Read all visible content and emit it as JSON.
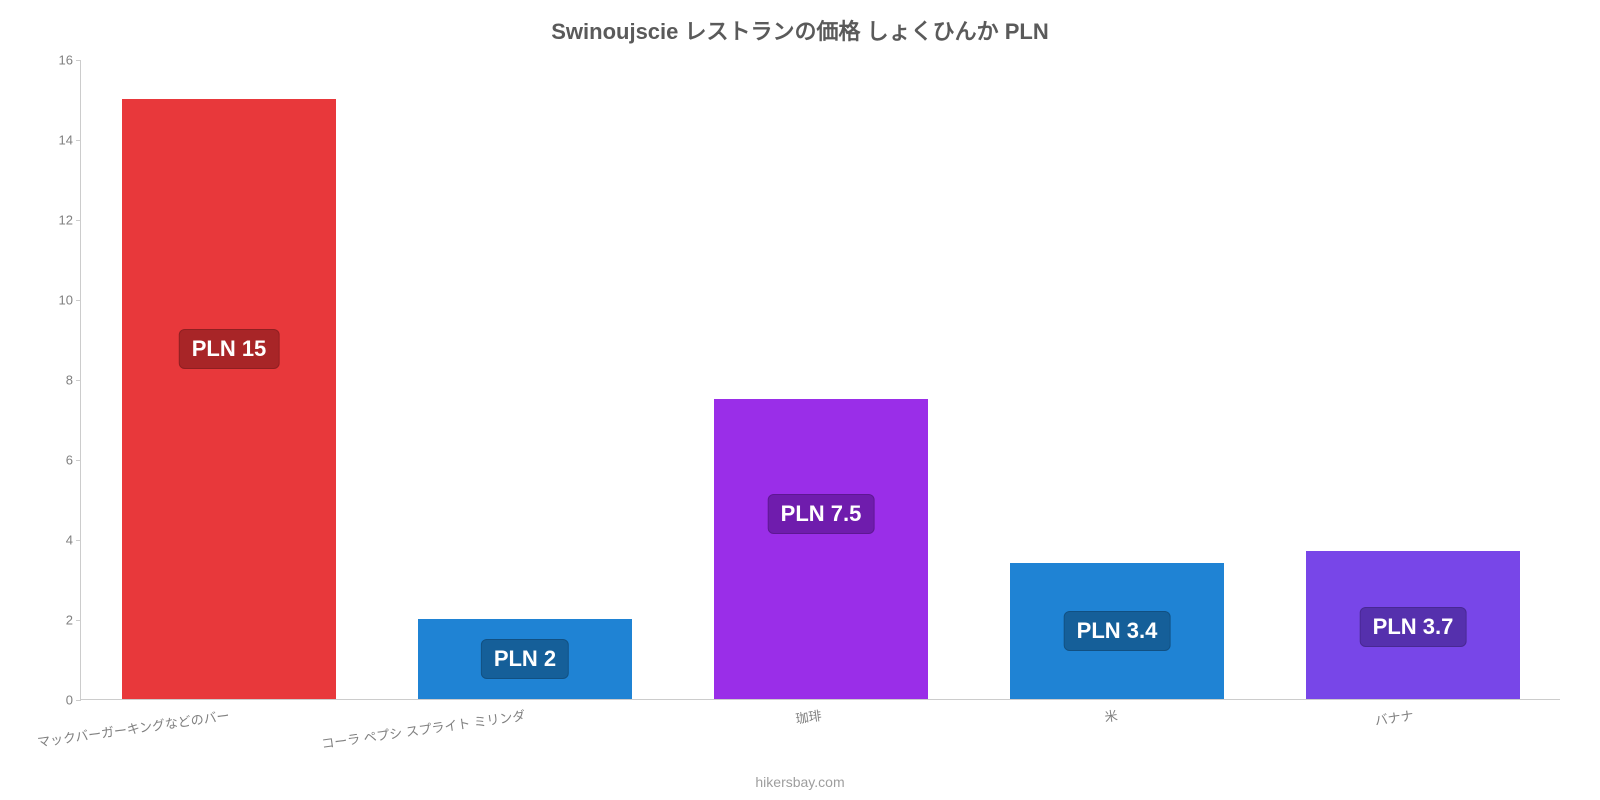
{
  "chart": {
    "type": "bar",
    "title": "Swinoujscie レストランの価格 しょくひんか PLN",
    "title_fontsize": 22,
    "title_color": "#5a5a5a",
    "credit": "hikersbay.com",
    "credit_color": "#9e9e9e",
    "background_color": "#ffffff",
    "axis_color": "#cccccc",
    "tick_color": "#808080",
    "tick_fontsize": 13,
    "label_fontsize": 22,
    "ylim": [
      0,
      16
    ],
    "ytick_step": 2,
    "categories": [
      "マックバーガーキングなどのバー",
      "コーラ ペプシ スプライト ミリンダ",
      "珈琲",
      "米",
      "バナナ"
    ],
    "values": [
      15,
      2,
      7.5,
      3.4,
      3.7
    ],
    "value_labels": [
      "PLN 15",
      "PLN 2",
      "PLN 7.5",
      "PLN 3.4",
      "PLN 3.7"
    ],
    "bar_colors": [
      "#e8383b",
      "#1f83d4",
      "#9a2ee8",
      "#1f83d4",
      "#7846e8"
    ],
    "label_bg_colors": [
      "#a82527",
      "#155f99",
      "#6f1cad",
      "#155f99",
      "#5530ad"
    ],
    "bar_width_ratio": 0.72
  }
}
